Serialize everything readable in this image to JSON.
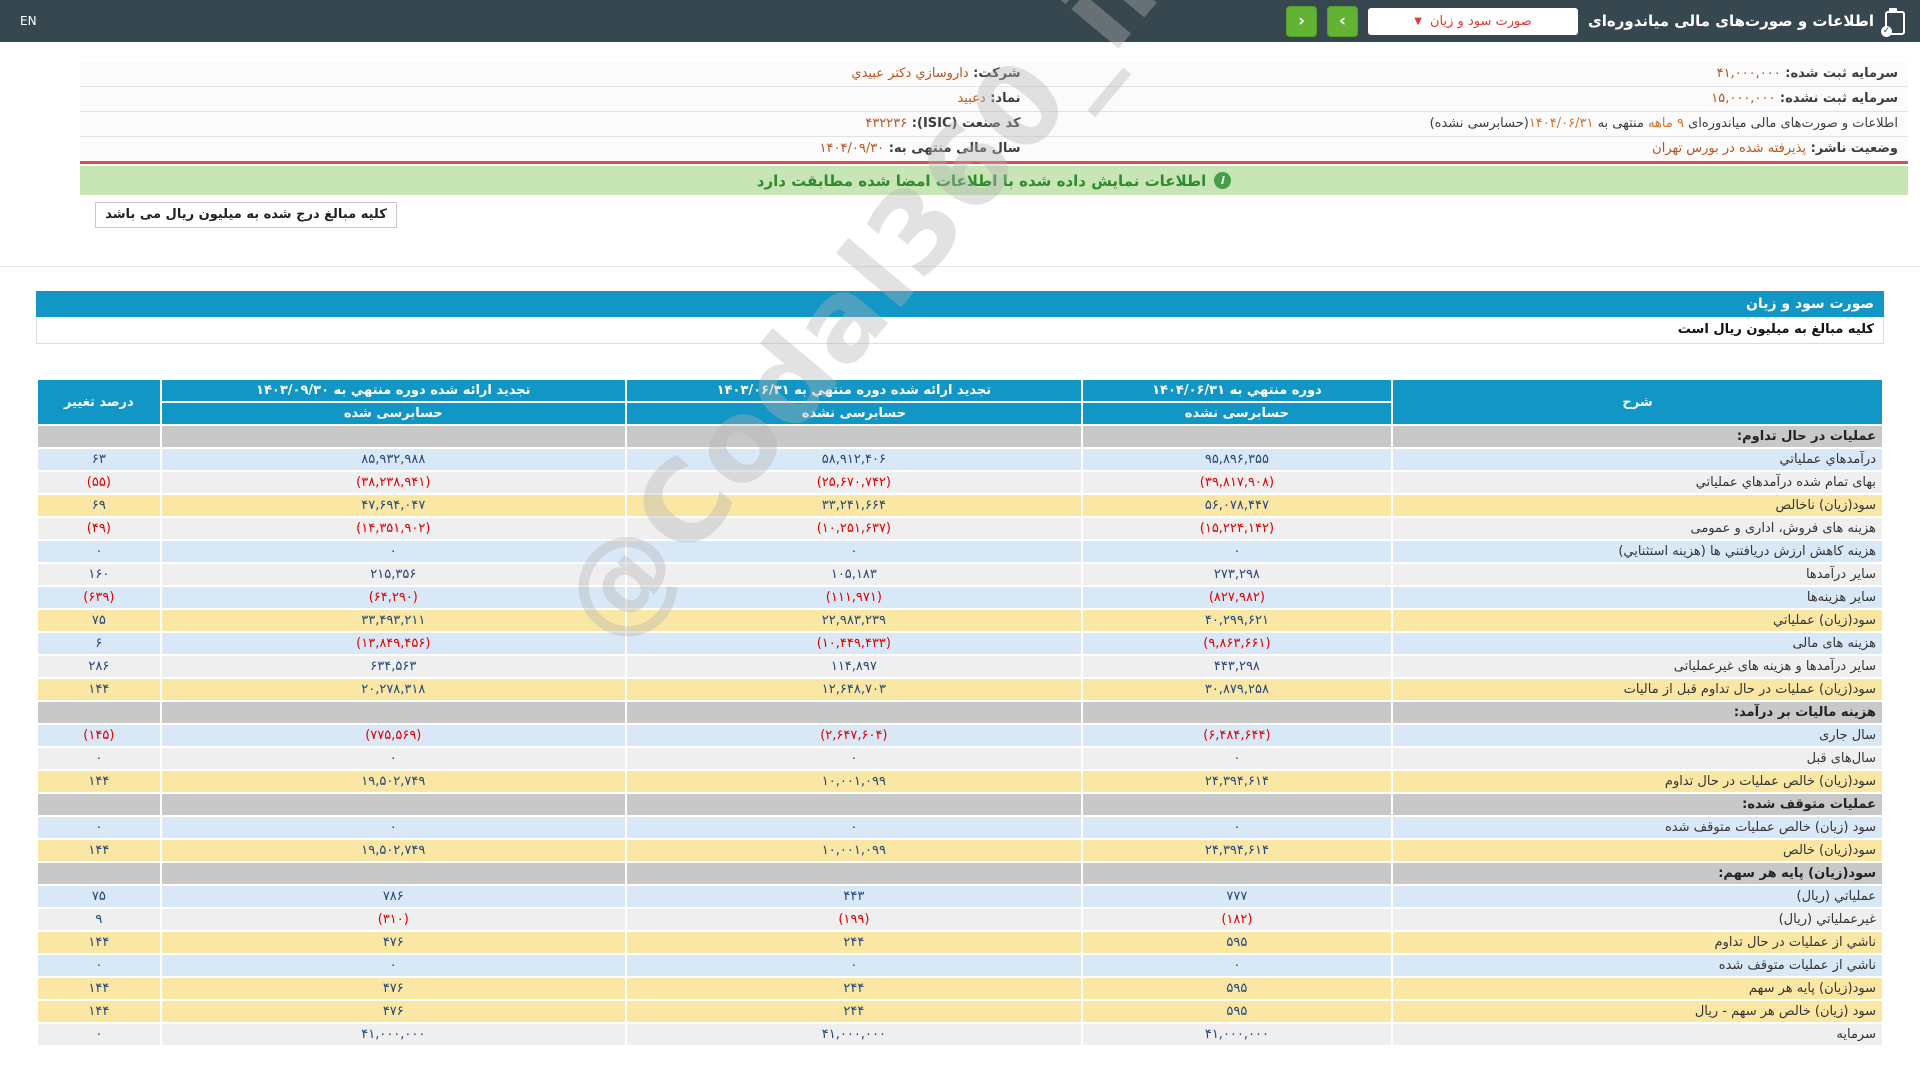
{
  "topbar": {
    "en_label": "EN",
    "title": "اطلاعات و صورت‌های مالی میاندوره‌ای",
    "dropdown_value": "صورت سود و زیان",
    "dropdown_chevron": "▼",
    "next_label": "›",
    "prev_label": "‹",
    "accent_green": "#62b233",
    "dropdown_text_color": "#e53935",
    "bar_color": "#37474f"
  },
  "company": {
    "right_fields": [
      {
        "label": "شرکت:",
        "value": "داروسازي دکتر عبيدي"
      },
      {
        "label": "نماد:",
        "value": "دعبيد"
      },
      {
        "label": "کد صنعت (ISIC):",
        "value": "۴۳۲۲۳۶"
      },
      {
        "label": "سال مالی منتهی به:",
        "value": "۱۴۰۴/۰۹/۳۰"
      }
    ],
    "left_fields": [
      {
        "label": "سرمایه ثبت شده:",
        "value": "۴۱,۰۰۰,۰۰۰"
      },
      {
        "label": "سرمایه ثبت نشده:",
        "value": "۱۵,۰۰۰,۰۰۰"
      },
      {
        "period_parts": [
          {
            "t": "اطلاعات و صورت‌های مالی میاندوره‌ای ",
            "c": "dk"
          },
          {
            "t": "۹ ماهه",
            "c": "hl"
          },
          {
            "t": " منتهی به ",
            "c": "dk"
          },
          {
            "t": "۱۴۰۴/۰۶/۳۱",
            "c": "hl"
          },
          {
            "t": "(حسابرسی نشده)",
            "c": "dk"
          }
        ]
      },
      {
        "label": "وضعیت ناشر:",
        "value": "پذیرفته شده در بورس تهران"
      }
    ]
  },
  "signed_bar": {
    "text": "اطلاعات نمایش داده شده با اطلاعات امضا شده مطابقت دارد"
  },
  "amounts_note": "کلیه مبالغ درج شده به میلیون ریال می باشد",
  "statement": {
    "title": "صورت سود و زیان",
    "unit_note": "کلیه مبالغ به میلیون ریال است"
  },
  "watermark": "@Codal360_ir",
  "table": {
    "header": {
      "desc": "شرح",
      "col1_line1": "دوره منتهي به ۱۴۰۴/۰۶/۳۱",
      "col1_line2": "حسابرسی نشده",
      "col2_line1": "تجدید ارائه شده دوره منتهي به ۱۴۰۳/۰۶/۳۱",
      "col2_line2": "حسابرسی نشده",
      "col3_line1": "تجدید ارائه شده دوره منتهي به ۱۴۰۳/۰۹/۳۰",
      "col3_line2": "حسابرسی شده",
      "pct": "درصد تغییر"
    },
    "rows": [
      {
        "type": "section",
        "label": "عملیات در حال تداوم:"
      },
      {
        "type": "data",
        "style": "blue",
        "label": "درآمدهاي عملياتي",
        "v1": "۹۵,۸۹۶,۳۵۵",
        "v2": "۵۸,۹۱۲,۴۰۶",
        "v3": "۸۵,۹۳۲,۹۸۸",
        "pct": "۶۳"
      },
      {
        "type": "data",
        "style": "gray",
        "label": "بهای تمام شده درآمدهاي عملياتي",
        "v1": "(۳۹,۸۱۷,۹۰۸)",
        "v2": "(۲۵,۶۷۰,۷۴۲)",
        "v3": "(۳۸,۲۳۸,۹۴۱)",
        "pct": "(۵۵)"
      },
      {
        "type": "data",
        "style": "yellow",
        "label": "سود(زیان) ناخالص",
        "v1": "۵۶,۰۷۸,۴۴۷",
        "v2": "۳۳,۲۴۱,۶۶۴",
        "v3": "۴۷,۶۹۴,۰۴۷",
        "pct": "۶۹"
      },
      {
        "type": "data",
        "style": "gray",
        "label": "هزینه های فروش، اداری و عمومی",
        "v1": "(۱۵,۲۲۴,۱۴۲)",
        "v2": "(۱۰,۲۵۱,۶۳۷)",
        "v3": "(۱۴,۳۵۱,۹۰۲)",
        "pct": "(۴۹)"
      },
      {
        "type": "data",
        "style": "blue",
        "label": "هزینه کاهش ارزش دریافتني ها (هزینه استثنایي)",
        "v1": "۰",
        "v2": "۰",
        "v3": "۰",
        "pct": "۰"
      },
      {
        "type": "data",
        "style": "gray",
        "label": "سایر درآمدها",
        "v1": "۲۷۳,۲۹۸",
        "v2": "۱۰۵,۱۸۳",
        "v3": "۲۱۵,۳۵۶",
        "pct": "۱۶۰"
      },
      {
        "type": "data",
        "style": "blue",
        "label": "سایر هزینه‌ها",
        "v1": "(۸۲۷,۹۸۲)",
        "v2": "(۱۱۱,۹۷۱)",
        "v3": "(۶۴,۲۹۰)",
        "pct": "(۶۳۹)"
      },
      {
        "type": "data",
        "style": "yellow",
        "label": "سود(زیان) عملیاتي",
        "v1": "۴۰,۲۹۹,۶۲۱",
        "v2": "۲۲,۹۸۳,۲۳۹",
        "v3": "۳۳,۴۹۳,۲۱۱",
        "pct": "۷۵"
      },
      {
        "type": "data",
        "style": "blue",
        "label": "هزینه های مالی",
        "v1": "(۹,۸۶۳,۶۶۱)",
        "v2": "(۱۰,۴۴۹,۴۳۳)",
        "v3": "(۱۳,۸۴۹,۴۵۶)",
        "pct": "۶"
      },
      {
        "type": "data",
        "style": "gray",
        "label": "سایر درآمدها و هزینه های غیرعملیاتی",
        "v1": "۴۴۳,۲۹۸",
        "v2": "۱۱۴,۸۹۷",
        "v3": "۶۳۴,۵۶۳",
        "pct": "۲۸۶"
      },
      {
        "type": "data",
        "style": "yellow",
        "label": "سود(زیان) عملیات در حال تداوم قبل از مالیات",
        "v1": "۳۰,۸۷۹,۲۵۸",
        "v2": "۱۲,۶۴۸,۷۰۳",
        "v3": "۲۰,۲۷۸,۳۱۸",
        "pct": "۱۴۴"
      },
      {
        "type": "section",
        "label": "هزینه مالیات بر درآمد:"
      },
      {
        "type": "data",
        "style": "blue",
        "label": "سال جاری",
        "v1": "(۶,۴۸۴,۶۴۴)",
        "v2": "(۲,۶۴۷,۶۰۴)",
        "v3": "(۷۷۵,۵۶۹)",
        "pct": "(۱۴۵)"
      },
      {
        "type": "data",
        "style": "gray",
        "label": "سال‌های قبل",
        "v1": "۰",
        "v2": "۰",
        "v3": "۰",
        "pct": "۰"
      },
      {
        "type": "data",
        "style": "yellow",
        "label": "سود(زیان) خالص عملیات در حال تداوم",
        "v1": "۲۴,۳۹۴,۶۱۴",
        "v2": "۱۰,۰۰۱,۰۹۹",
        "v3": "۱۹,۵۰۲,۷۴۹",
        "pct": "۱۴۴"
      },
      {
        "type": "section",
        "label": "عملیات متوقف شده:"
      },
      {
        "type": "data",
        "style": "blue",
        "label": "سود (زیان) خالص عملیات متوقف شده",
        "v1": "۰",
        "v2": "۰",
        "v3": "۰",
        "pct": "۰"
      },
      {
        "type": "data",
        "style": "yellow",
        "label": "سود(زیان) خالص",
        "v1": "۲۴,۳۹۴,۶۱۴",
        "v2": "۱۰,۰۰۱,۰۹۹",
        "v3": "۱۹,۵۰۲,۷۴۹",
        "pct": "۱۴۴"
      },
      {
        "type": "section",
        "label": "سود(زیان) پایه هر سهم:"
      },
      {
        "type": "data",
        "style": "blue",
        "label": "عملیاتي (ریال)",
        "v1": "۷۷۷",
        "v2": "۴۴۳",
        "v3": "۷۸۶",
        "pct": "۷۵"
      },
      {
        "type": "data",
        "style": "gray",
        "label": "غیرعملیاتي (ریال)",
        "v1": "(۱۸۲)",
        "v2": "(۱۹۹)",
        "v3": "(۳۱۰)",
        "pct": "۹"
      },
      {
        "type": "data",
        "style": "yellow",
        "label": "ناشي از عملیات در حال تداوم",
        "v1": "۵۹۵",
        "v2": "۲۴۴",
        "v3": "۴۷۶",
        "pct": "۱۴۴"
      },
      {
        "type": "data",
        "style": "blue",
        "label": "ناشي از عملیات متوقف شده",
        "v1": "۰",
        "v2": "۰",
        "v3": "۰",
        "pct": "۰"
      },
      {
        "type": "data",
        "style": "yellow",
        "label": "سود(زیان) پایه هر سهم",
        "v1": "۵۹۵",
        "v2": "۲۴۴",
        "v3": "۴۷۶",
        "pct": "۱۴۴"
      },
      {
        "type": "data",
        "style": "yellow",
        "label": "سود (زیان) خالص هر سهم - ریال",
        "v1": "۵۹۵",
        "v2": "۲۴۴",
        "v3": "۴۷۶",
        "pct": "۱۴۴"
      },
      {
        "type": "data",
        "style": "gray",
        "label": "سرمایه",
        "v1": "۴۱,۰۰۰,۰۰۰",
        "v2": "۴۱,۰۰۰,۰۰۰",
        "v3": "۴۱,۰۰۰,۰۰۰",
        "pct": "۰"
      }
    ]
  }
}
